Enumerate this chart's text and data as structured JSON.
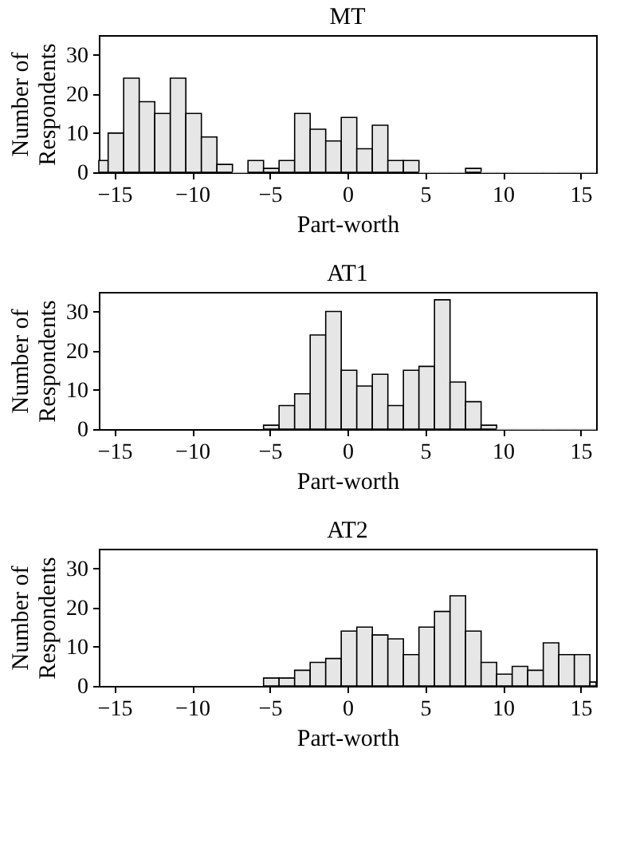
{
  "chart_data": [
    {
      "type": "histogram",
      "title": "MT",
      "xlabel": "Part-worth",
      "ylabel": "Number of\nRespondents",
      "color": "#e6e6e6",
      "bins": [
        -16,
        -15.4,
        -14.4,
        -13.4,
        -12.4,
        -11.4,
        -10.4,
        -9.4,
        -8.4,
        -7.4,
        -6.4,
        -5.4,
        -4.4,
        -3.4,
        -2.4,
        -1.4,
        -0.4,
        0.6,
        1.6,
        2.6,
        3.6,
        4.6,
        5.6,
        6.6,
        7.6,
        8.6,
        9.6,
        10.6,
        11.6,
        12.6,
        13.6,
        14.6,
        15.6,
        16
      ],
      "values": [
        3,
        10,
        24,
        18,
        15,
        24,
        15,
        9,
        2,
        0,
        3,
        1,
        3,
        15,
        11,
        8,
        14,
        6,
        12,
        3,
        3,
        0,
        0,
        0,
        1,
        0,
        0,
        0,
        0,
        0,
        0,
        0,
        0
      ],
      "xlim": [
        -16,
        16
      ],
      "xticks": [
        -15,
        -10,
        -5,
        0,
        5,
        10,
        15
      ],
      "ylim": [
        0,
        35
      ],
      "yticks": [
        0,
        10,
        20,
        30
      ],
      "grid": false
    },
    {
      "type": "histogram",
      "title": "AT1",
      "xlabel": "Part-worth",
      "ylabel": "Number of\nRespondents",
      "color": "#e6e6e6",
      "bins": [
        -5.4,
        -4.4,
        -3.4,
        -2.4,
        -1.4,
        -0.4,
        0.6,
        1.6,
        2.6,
        3.6,
        4.6,
        5.6,
        6.6,
        7.6,
        8.6,
        9.6,
        10.6,
        11.6,
        12.6,
        13.6,
        14.6,
        15.6,
        16
      ],
      "values": [
        1,
        6,
        9,
        24,
        30,
        15,
        11,
        14,
        6,
        15,
        16,
        33,
        12,
        7,
        1,
        0,
        0,
        0,
        0,
        0,
        0,
        0
      ],
      "xlim": [
        -16,
        16
      ],
      "xticks": [
        -15,
        -10,
        -5,
        0,
        5,
        10,
        15
      ],
      "ylim": [
        0,
        35
      ],
      "yticks": [
        0,
        10,
        20,
        30
      ],
      "grid": false
    },
    {
      "type": "histogram",
      "title": "AT2",
      "xlabel": "Part-worth",
      "ylabel": "Number of\nRespondents",
      "color": "#e6e6e6",
      "bins": [
        -5.4,
        -4.4,
        -3.4,
        -2.4,
        -1.4,
        -0.4,
        0.6,
        1.6,
        2.6,
        3.6,
        4.6,
        5.6,
        6.6,
        7.6,
        8.6,
        9.6,
        10.6,
        11.6,
        12.6,
        13.6,
        14.6,
        15.6,
        16
      ],
      "values": [
        2,
        2,
        4,
        6,
        7,
        14,
        15,
        13,
        12,
        8,
        15,
        19,
        23,
        14,
        6,
        3,
        5,
        4,
        11,
        8,
        8,
        1
      ],
      "xlim": [
        -16,
        16
      ],
      "xticks": [
        -15,
        -10,
        -5,
        0,
        5,
        10,
        15
      ],
      "ylim": [
        0,
        35
      ],
      "yticks": [
        0,
        10,
        20,
        30
      ],
      "grid": false
    }
  ]
}
